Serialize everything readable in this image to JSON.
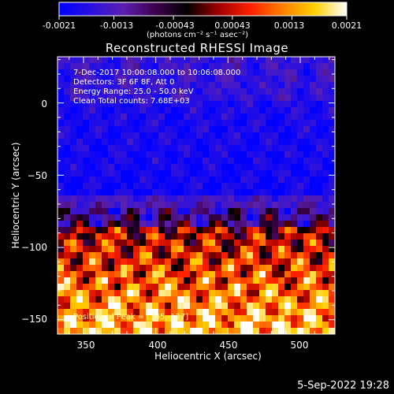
{
  "colorbar": {
    "ticks": [
      "-0.0021",
      "-0.0013",
      "-0.00043",
      "0.00043",
      "0.0013",
      "0.0021"
    ],
    "tick_values": [
      -0.0021,
      -0.0013,
      -0.00043,
      0.00043,
      0.0013,
      0.0021
    ],
    "range": [
      -0.0021,
      0.0021
    ],
    "units_label": "(photons cm⁻² s⁻¹ asec⁻²)"
  },
  "info": {
    "line1": "7-Dec-2017 10:00:08.000 to 10:06:08.000",
    "line2": "Detectors: 3F 6F 8F, Att 0",
    "line3": "Energy Range: 25.0 - 50.0 keV",
    "line4": "Clean     Total counts: 7.68E+03",
    "peak": "Position of Peak = [345,-127]"
  },
  "footer": {
    "date": "5-Sep-2022 19:28"
  },
  "chart_data": {
    "type": "heatmap",
    "title": "Reconstructed RHESSI Image",
    "xlabel": "Heliocentric X (arcsec)",
    "ylabel": "Heliocentric Y (arcsec)",
    "xlim": [
      332,
      524
    ],
    "ylim": [
      -160,
      32
    ],
    "xticks": [
      350,
      400,
      450,
      500
    ],
    "yticks": [
      0,
      -50,
      -100,
      -150
    ],
    "xtick_labels": [
      "350",
      "400",
      "450",
      "500"
    ],
    "ytick_labels": [
      "0",
      "−50",
      "−100",
      "−150"
    ],
    "peak_position": [
      345,
      -127
    ],
    "colormap": "rainbow-blue-to-white",
    "color_stops": [
      "#0000ff",
      "#2a10e0",
      "#5a20b0",
      "#400050",
      "#000000",
      "#a00000",
      "#ff2000",
      "#ff8000",
      "#ffd000",
      "#ffffff"
    ]
  }
}
